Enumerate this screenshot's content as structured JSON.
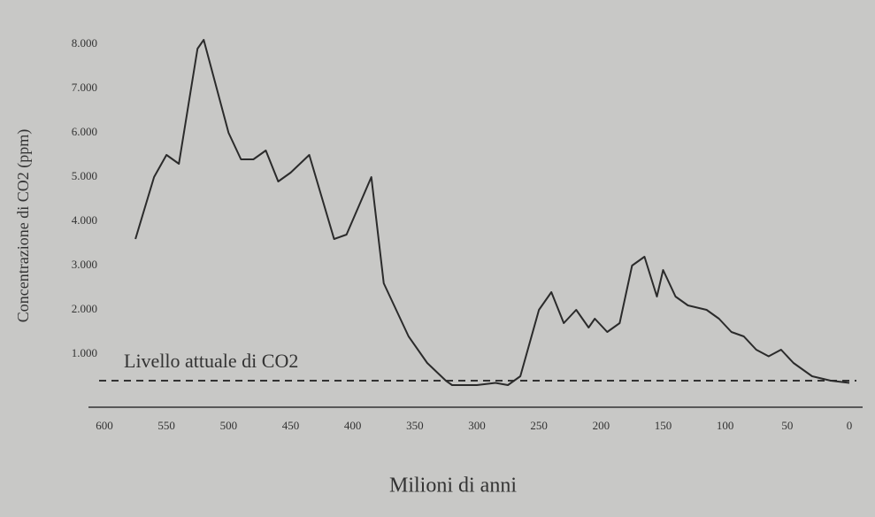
{
  "chart_data": {
    "type": "line",
    "xlabel": "Milioni di anni",
    "ylabel": "Concentrazione di CO2 (ppm)",
    "x": [
      575,
      560,
      550,
      540,
      525,
      520,
      500,
      490,
      480,
      470,
      460,
      450,
      435,
      415,
      405,
      385,
      375,
      355,
      340,
      325,
      320,
      300,
      285,
      275,
      265,
      250,
      240,
      230,
      220,
      210,
      205,
      195,
      185,
      175,
      165,
      155,
      150,
      140,
      130,
      115,
      105,
      95,
      85,
      75,
      65,
      55,
      45,
      30,
      15,
      0
    ],
    "series": [
      {
        "name": "CO2",
        "color": "#2b2b2b",
        "values": [
          3600,
          5000,
          5500,
          5300,
          7900,
          8100,
          6000,
          5400,
          5400,
          5600,
          4900,
          5100,
          5500,
          3600,
          3700,
          5000,
          2600,
          1400,
          800,
          400,
          300,
          300,
          350,
          300,
          500,
          2000,
          2400,
          1700,
          2000,
          1600,
          1800,
          1500,
          1700,
          3000,
          3200,
          2300,
          2900,
          2300,
          2100,
          2000,
          1800,
          1500,
          1400,
          1100,
          950,
          1100,
          800,
          500,
          400,
          350
        ]
      }
    ],
    "reference": {
      "value": 400,
      "label": "Livello attuale di CO2"
    },
    "xlim": [
      600,
      0
    ],
    "xticks": [
      600,
      550,
      500,
      450,
      400,
      350,
      300,
      250,
      200,
      150,
      100,
      50,
      0
    ],
    "ylim": [
      0,
      8200
    ],
    "yticks": [
      {
        "value": 1000,
        "label": "1.000"
      },
      {
        "value": 2000,
        "label": "2.000"
      },
      {
        "value": 3000,
        "label": "3.000"
      },
      {
        "value": 4000,
        "label": "4.000"
      },
      {
        "value": 5000,
        "label": "5.000"
      },
      {
        "value": 6000,
        "label": "6.000"
      },
      {
        "value": 7000,
        "label": "7.000"
      },
      {
        "value": 8000,
        "label": "8.000"
      }
    ]
  }
}
